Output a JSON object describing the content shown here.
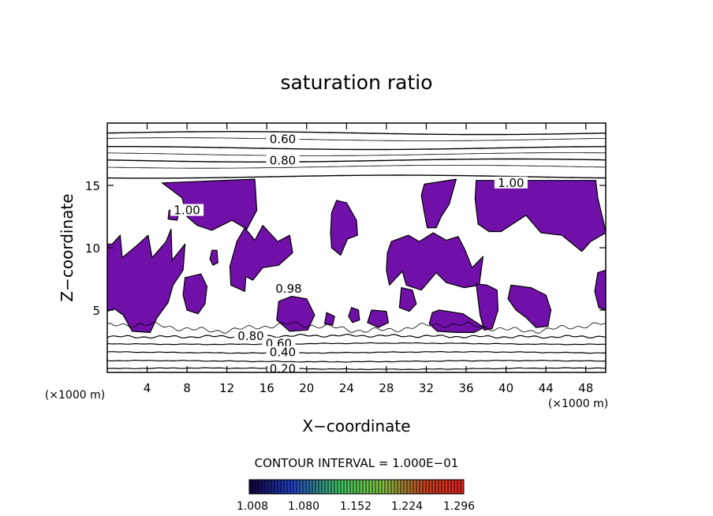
{
  "chart_data": {
    "type": "contour",
    "title": "saturation ratio",
    "xlabel": "X−coordinate",
    "ylabel": "Z−coordinate",
    "x_unit": "(×1000 m)",
    "y_unit": "(×1000 m)",
    "xlim": [
      0,
      50
    ],
    "ylim": [
      0,
      20
    ],
    "xticks": [
      4,
      8,
      12,
      16,
      20,
      24,
      28,
      32,
      36,
      40,
      44,
      48
    ],
    "yticks": [
      5,
      10,
      15
    ],
    "contour_interval_text": "CONTOUR INTERVAL = 1.000E−01",
    "contour_labels": [
      {
        "text": "0.60",
        "x": 17.6,
        "z": 18.7
      },
      {
        "text": "0.80",
        "x": 17.6,
        "z": 17.0
      },
      {
        "text": "1.00",
        "x": 40.5,
        "z": 15.2
      },
      {
        "text": "1.00",
        "x": 8.0,
        "z": 13.0
      },
      {
        "text": "0.98",
        "x": 18.2,
        "z": 6.7
      },
      {
        "text": "0.80",
        "x": 14.4,
        "z": 2.9
      },
      {
        "text": "0.60",
        "x": 17.2,
        "z": 2.3
      },
      {
        "text": "0.40",
        "x": 17.6,
        "z": 1.6
      },
      {
        "text": "0.20",
        "x": 17.6,
        "z": 0.3
      }
    ],
    "upper_isolines_z": [
      19.2,
      18.7,
      18.0,
      17.5,
      17.0,
      16.5,
      15.7
    ],
    "lower_isolines_z": [
      0.3,
      0.9,
      1.6,
      2.3,
      2.9
    ],
    "fill_color": "#7010a8",
    "colorbar": {
      "ticks": [
        "1.008",
        "1.080",
        "1.152",
        "1.224",
        "1.296"
      ],
      "range": [
        1.0,
        1.3
      ],
      "colors": [
        "#10003a",
        "#2040c0",
        "#3fbf60",
        "#80c040",
        "#c04020",
        "#e02020"
      ]
    },
    "supersaturated_regions": [
      {
        "name": "region-a",
        "pts": [
          [
            0.5,
            10.3
          ],
          [
            1.3,
            11.0
          ],
          [
            1.5,
            9.2
          ],
          [
            3.0,
            10.2
          ],
          [
            4.1,
            11.0
          ],
          [
            4.5,
            9.2
          ],
          [
            5.9,
            10.5
          ],
          [
            6.4,
            11.5
          ],
          [
            6.5,
            9.0
          ],
          [
            7.8,
            10.3
          ],
          [
            7.6,
            8.2
          ],
          [
            6.6,
            7.0
          ],
          [
            6.1,
            5.6
          ],
          [
            5.0,
            4.4
          ],
          [
            4.3,
            3.2
          ],
          [
            2.5,
            3.3
          ],
          [
            1.6,
            4.6
          ],
          [
            0.7,
            5.1
          ],
          [
            0.0,
            4.9
          ],
          [
            0.0,
            10.3
          ]
        ]
      },
      {
        "name": "region-b",
        "pts": [
          [
            5.5,
            15.2
          ],
          [
            14.8,
            15.5
          ],
          [
            15.0,
            13.0
          ],
          [
            14.0,
            11.5
          ],
          [
            12.5,
            12.2
          ],
          [
            10.5,
            11.4
          ],
          [
            9.0,
            11.8
          ],
          [
            8.0,
            12.5
          ],
          [
            7.5,
            14.0
          ]
        ]
      },
      {
        "name": "region-c",
        "pts": [
          [
            13.0,
            10.5
          ],
          [
            13.8,
            11.6
          ],
          [
            14.8,
            10.6
          ],
          [
            15.6,
            11.8
          ],
          [
            17.1,
            10.5
          ],
          [
            18.3,
            11.0
          ],
          [
            18.6,
            9.6
          ],
          [
            17.2,
            8.6
          ],
          [
            15.6,
            8.4
          ],
          [
            14.6,
            7.4
          ],
          [
            13.9,
            7.7
          ],
          [
            13.8,
            6.5
          ],
          [
            12.4,
            7.0
          ],
          [
            12.3,
            8.5
          ]
        ]
      },
      {
        "name": "region-d",
        "pts": [
          [
            22.5,
            12.8
          ],
          [
            23.0,
            13.8
          ],
          [
            24.0,
            13.6
          ],
          [
            25.0,
            12.2
          ],
          [
            25.1,
            11.0
          ],
          [
            24.1,
            10.7
          ],
          [
            23.4,
            9.4
          ],
          [
            22.5,
            10.0
          ],
          [
            22.4,
            11.2
          ]
        ]
      },
      {
        "name": "region-e",
        "pts": [
          [
            28.5,
            10.5
          ],
          [
            30.2,
            11.0
          ],
          [
            31.3,
            10.5
          ],
          [
            32.7,
            11.2
          ],
          [
            34.0,
            10.6
          ],
          [
            35.2,
            10.9
          ],
          [
            35.9,
            9.8
          ],
          [
            36.6,
            8.4
          ],
          [
            37.7,
            9.3
          ],
          [
            37.3,
            7.0
          ],
          [
            35.8,
            6.8
          ],
          [
            34.0,
            7.2
          ],
          [
            33.0,
            8.0
          ],
          [
            31.5,
            6.6
          ],
          [
            30.0,
            7.0
          ],
          [
            29.6,
            8.1
          ],
          [
            28.3,
            7.0
          ],
          [
            28.0,
            8.2
          ],
          [
            28.1,
            9.6
          ]
        ]
      },
      {
        "name": "region-f",
        "pts": [
          [
            31.8,
            15.1
          ],
          [
            35.0,
            15.5
          ],
          [
            34.3,
            13.5
          ],
          [
            33.5,
            12.5
          ],
          [
            33.0,
            11.6
          ],
          [
            32.1,
            11.6
          ],
          [
            31.8,
            12.8
          ],
          [
            31.5,
            14.2
          ]
        ]
      },
      {
        "name": "region-g",
        "pts": [
          [
            37.0,
            15.4
          ],
          [
            49.0,
            15.4
          ],
          [
            49.2,
            14.0
          ],
          [
            49.8,
            12.0
          ],
          [
            50.0,
            11.2
          ],
          [
            48.5,
            10.5
          ],
          [
            47.6,
            9.7
          ],
          [
            45.6,
            11.0
          ],
          [
            43.5,
            11.2
          ],
          [
            42.0,
            12.6
          ],
          [
            39.5,
            11.3
          ],
          [
            38.3,
            11.3
          ],
          [
            37.2,
            11.9
          ],
          [
            36.9,
            13.9
          ]
        ]
      },
      {
        "name": "region-h",
        "pts": [
          [
            17.2,
            5.7
          ],
          [
            18.5,
            6.1
          ],
          [
            20.0,
            5.9
          ],
          [
            20.8,
            4.6
          ],
          [
            20.1,
            3.4
          ],
          [
            18.3,
            3.3
          ],
          [
            17.0,
            4.2
          ]
        ]
      },
      {
        "name": "region-i",
        "pts": [
          [
            29.5,
            6.8
          ],
          [
            30.6,
            6.6
          ],
          [
            31.0,
            5.5
          ],
          [
            30.3,
            4.9
          ],
          [
            29.3,
            5.2
          ]
        ]
      },
      {
        "name": "region-j",
        "pts": [
          [
            37.0,
            7.1
          ],
          [
            38.1,
            7.0
          ],
          [
            39.1,
            6.6
          ],
          [
            39.2,
            5.0
          ],
          [
            38.6,
            3.5
          ],
          [
            37.8,
            3.4
          ],
          [
            37.4,
            4.6
          ]
        ]
      },
      {
        "name": "region-k",
        "pts": [
          [
            32.6,
            4.8
          ],
          [
            33.3,
            5.0
          ],
          [
            35.7,
            4.7
          ],
          [
            37.8,
            3.6
          ],
          [
            36.8,
            3.2
          ],
          [
            35.0,
            3.2
          ],
          [
            33.1,
            3.3
          ],
          [
            32.3,
            3.9
          ]
        ]
      },
      {
        "name": "region-l",
        "pts": [
          [
            40.5,
            7.0
          ],
          [
            42.5,
            6.8
          ],
          [
            44.0,
            6.2
          ],
          [
            44.5,
            5.0
          ],
          [
            44.2,
            3.7
          ],
          [
            43.0,
            3.6
          ],
          [
            42.0,
            4.4
          ],
          [
            41.0,
            5.0
          ],
          [
            40.2,
            5.9
          ]
        ]
      },
      {
        "name": "region-m",
        "pts": [
          [
            49.2,
            8.0
          ],
          [
            50.0,
            8.2
          ],
          [
            50.0,
            5.0
          ],
          [
            49.3,
            5.2
          ],
          [
            48.9,
            6.5
          ]
        ]
      },
      {
        "name": "region-n",
        "pts": [
          [
            7.8,
            7.6
          ],
          [
            9.4,
            7.9
          ],
          [
            10.0,
            6.9
          ],
          [
            9.8,
            5.5
          ],
          [
            9.1,
            4.7
          ],
          [
            8.0,
            5.0
          ],
          [
            7.6,
            6.2
          ]
        ]
      },
      {
        "name": "region-o",
        "pts": [
          [
            10.5,
            9.8
          ],
          [
            11.0,
            9.8
          ],
          [
            11.1,
            8.8
          ],
          [
            10.6,
            8.6
          ],
          [
            10.3,
            9.1
          ]
        ]
      },
      {
        "name": "region-p",
        "pts": [
          [
            24.5,
            5.2
          ],
          [
            25.2,
            5.0
          ],
          [
            25.3,
            4.2
          ],
          [
            24.6,
            4.0
          ],
          [
            24.2,
            4.5
          ]
        ]
      },
      {
        "name": "region-q",
        "pts": [
          [
            26.5,
            5.0
          ],
          [
            28.0,
            4.9
          ],
          [
            28.2,
            4.0
          ],
          [
            27.2,
            3.6
          ],
          [
            26.1,
            4.0
          ]
        ]
      },
      {
        "name": "region-r",
        "pts": [
          [
            22.0,
            4.8
          ],
          [
            22.8,
            4.5
          ],
          [
            22.6,
            3.8
          ],
          [
            21.8,
            3.9
          ]
        ]
      },
      {
        "name": "region-s",
        "pts": [
          [
            6.2,
            13.0
          ],
          [
            7.3,
            13.2
          ],
          [
            7.0,
            12.2
          ],
          [
            6.1,
            12.3
          ]
        ]
      }
    ]
  }
}
